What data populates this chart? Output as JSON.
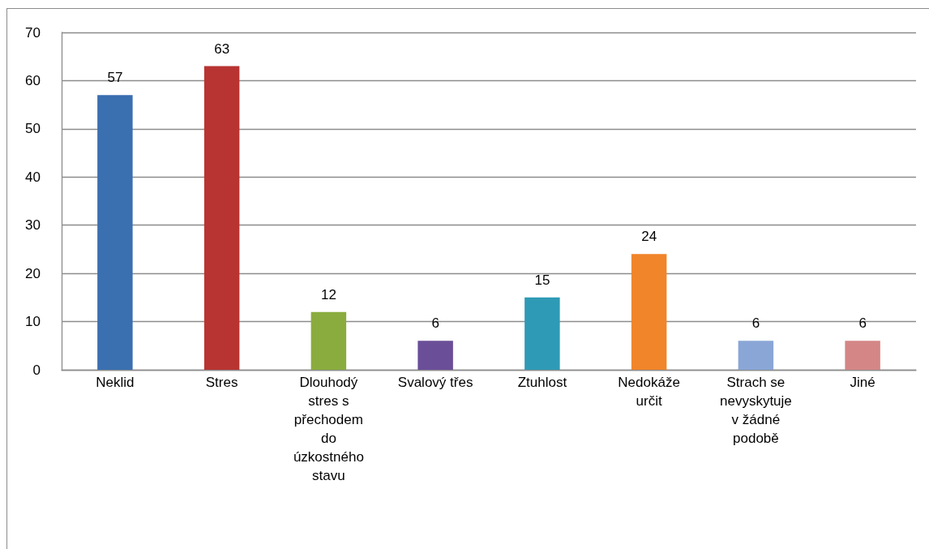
{
  "chart_data": {
    "type": "bar",
    "categories": [
      "Neklid",
      "Stres",
      "Dlouhodý stres s přechodem do úzkostného stavu",
      "Svalový třes",
      "Ztuhlost",
      "Nedokáže určit",
      "Strach se nevyskytuje v žádné podobě",
      "Jiné"
    ],
    "values": [
      57,
      63,
      12,
      6,
      15,
      24,
      6,
      6
    ],
    "colors": [
      "#3a6fb0",
      "#b83432",
      "#8aac3e",
      "#6a4e98",
      "#2f9ab6",
      "#f0852a",
      "#8aa6d6",
      "#d48686"
    ],
    "ylim": [
      0,
      70
    ],
    "yticks": [
      0,
      10,
      20,
      30,
      40,
      50,
      60,
      70
    ],
    "grid": "y",
    "data_labels": true
  }
}
